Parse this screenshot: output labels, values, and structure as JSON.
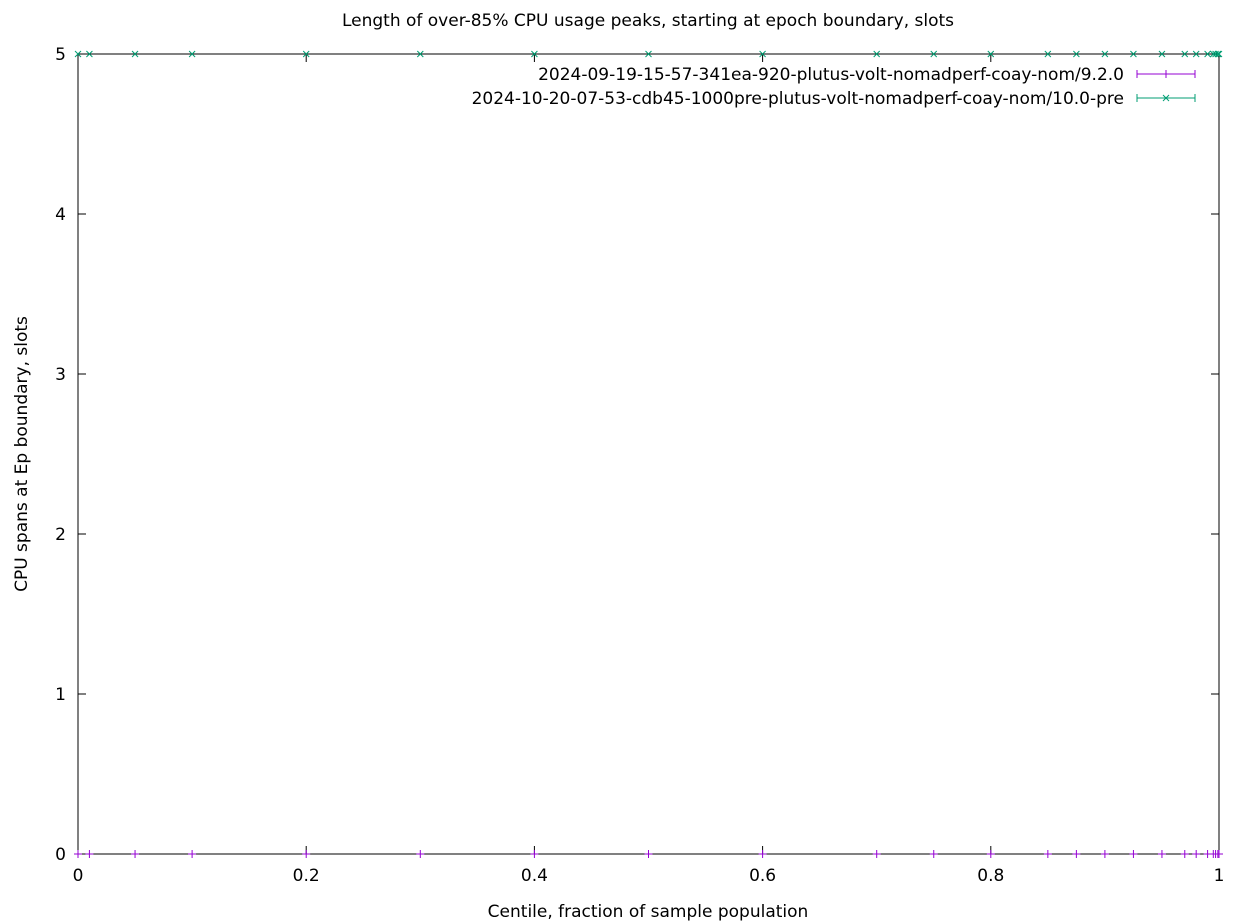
{
  "chart_data": {
    "type": "scatter",
    "title": "Length of over-85% CPU usage peaks, starting at epoch boundary, slots",
    "xlabel": "Centile, fraction of sample population",
    "ylabel": "CPU spans at Ep boundary, slots",
    "xlim": [
      0,
      1
    ],
    "ylim": [
      0,
      5
    ],
    "xticks": [
      "0",
      "0.2",
      "0.4",
      "0.6",
      "0.8",
      "1"
    ],
    "yticks": [
      "0",
      "1",
      "2",
      "3",
      "4",
      "5"
    ],
    "grid": false,
    "legend_position": "top-right",
    "series": [
      {
        "name": "2024-09-19-15-57-341ea-920-plutus-volt-nomadperf-coay-nom/9.2.0",
        "color": "#9400d3",
        "marker": "plus",
        "x": [
          0.0,
          0.01,
          0.05,
          0.1,
          0.2,
          0.3,
          0.4,
          0.5,
          0.6,
          0.7,
          0.75,
          0.8,
          0.85,
          0.875,
          0.9,
          0.925,
          0.95,
          0.97,
          0.98,
          0.99,
          0.995,
          0.997,
          0.999,
          1.0
        ],
        "y": [
          0,
          0,
          0,
          0,
          0,
          0,
          0,
          0,
          0,
          0,
          0,
          0,
          0,
          0,
          0,
          0,
          0,
          0,
          0,
          0,
          0,
          0,
          0,
          0
        ]
      },
      {
        "name": "2024-10-20-07-53-cdb45-1000pre-plutus-volt-nomadperf-coay-nom/10.0-pre",
        "color": "#009e73",
        "marker": "cross",
        "x": [
          0.0,
          0.01,
          0.05,
          0.1,
          0.2,
          0.3,
          0.4,
          0.5,
          0.6,
          0.7,
          0.75,
          0.8,
          0.85,
          0.875,
          0.9,
          0.925,
          0.95,
          0.97,
          0.98,
          0.99,
          0.995,
          0.997,
          0.999,
          1.0
        ],
        "y": [
          5,
          5,
          5,
          5,
          5,
          5,
          5,
          5,
          5,
          5,
          5,
          5,
          5,
          5,
          5,
          5,
          5,
          5,
          5,
          5,
          5,
          5,
          5,
          5
        ]
      }
    ]
  }
}
